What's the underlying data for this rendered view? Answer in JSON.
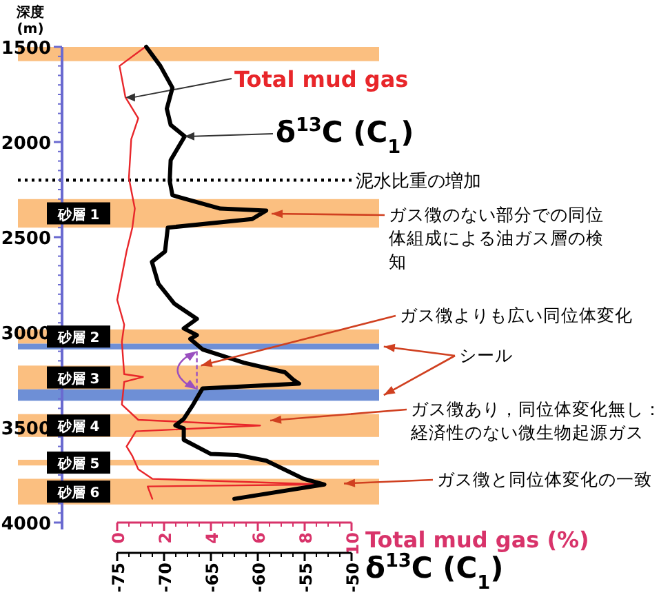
{
  "chart_data": {
    "type": "line",
    "ylabel": "深度 (m)",
    "xlabel": "Total mud gas (%)",
    "x2label": "δ$^{13}$C (C$_{1}$)",
    "ylim": [
      4000,
      1500
    ],
    "yticks": [
      1500,
      2000,
      2500,
      3000,
      3500,
      4000
    ],
    "xlim": [
      0,
      10
    ],
    "xticks": [
      0,
      2,
      4,
      6,
      8,
      10
    ],
    "x2lim": [
      -75,
      -50
    ],
    "x2ticks": [
      -75,
      -70,
      -65,
      -60,
      -55,
      -50
    ],
    "grid": false,
    "legend": false,
    "marker": "none",
    "line_style": "solid",
    "series": [
      {
        "name": "Total mud gas",
        "color": "#e8262a",
        "x": [
          1.2,
          0.1,
          0.35,
          0.9,
          0.6,
          0.5,
          0.75,
          0.65,
          0.4,
          0.0,
          0.3,
          0.2,
          0.3,
          1.1,
          0.3,
          0.2,
          0.9,
          6.1,
          0.8,
          0.4,
          0.65,
          0.9,
          1.5,
          8.8,
          1.3,
          1.5
        ],
        "values": [
          1500,
          1600,
          1765,
          1875,
          1985,
          2190,
          2350,
          2450,
          2575,
          2830,
          2960,
          3050,
          3220,
          3235,
          3260,
          3380,
          3460,
          3490,
          3520,
          3600,
          3650,
          3720,
          3770,
          3800,
          3810,
          3875
        ]
      },
      {
        "name": "δ$^{13}$C (C$_{1}$)",
        "color": "#000000",
        "axis": "x2",
        "x": [
          -71.9,
          -70.4,
          -69.1,
          -69.7,
          -69.3,
          -67.8,
          -69.3,
          -69.4,
          -69.1,
          -64,
          -59.1,
          -60.6,
          -69.6,
          -69.9,
          -71.3,
          -70.6,
          -68.9,
          -66.5,
          -67.9,
          -66.5,
          -67.2,
          -65.9,
          -61.5,
          -57.1,
          -56.2,
          -55.6,
          -65.9,
          -66.9,
          -67.9,
          -68.8,
          -67.9,
          -67.9,
          -65,
          -62.2,
          -59.1,
          -55.1,
          -52.9,
          -62.5
        ],
        "values": [
          1500,
          1600,
          1715,
          1825,
          1910,
          1970,
          2095,
          2205,
          2280,
          2350,
          2360,
          2405,
          2450,
          2575,
          2630,
          2745,
          2850,
          2930,
          2980,
          3015,
          3035,
          3090,
          3160,
          3210,
          3250,
          3270,
          3295,
          3380,
          3455,
          3490,
          3505,
          3565,
          3640,
          3645,
          3675,
          3770,
          3800,
          3875
        ]
      }
    ],
    "bands": [
      {
        "axis": "y",
        "from": 1500,
        "to": 1575,
        "label": null,
        "color": "#fbbf80"
      },
      {
        "axis": "y",
        "from": 2300,
        "to": 2450,
        "label": "砂層 1",
        "color": "#fbbf80"
      },
      {
        "axis": "y",
        "from": 2985,
        "to": 3060,
        "label": "砂層 2",
        "color": "#fbbf80"
      },
      {
        "axis": "y",
        "from": 3060,
        "to": 3090,
        "label": null,
        "color": "#6e8fd6"
      },
      {
        "axis": "y",
        "from": 3175,
        "to": 3300,
        "label": "砂層 3",
        "color": "#fbbf80"
      },
      {
        "axis": "y",
        "from": 3300,
        "to": 3360,
        "label": null,
        "color": "#6e8fd6"
      },
      {
        "axis": "y",
        "from": 3430,
        "to": 3550,
        "label": "砂層 4",
        "color": "#fbbf80"
      },
      {
        "axis": "y",
        "from": 3670,
        "to": 3700,
        "label": "砂層 5",
        "color": "#fbbf80"
      },
      {
        "axis": "y",
        "from": 3770,
        "to": 3905,
        "label": "砂層 6",
        "color": "#fbbf80"
      }
    ],
    "ref_lines": [
      {
        "axis": "y",
        "value": 2200,
        "label": "泥水比重の増加",
        "line_style": "dotted",
        "color": "#000000"
      }
    ],
    "annotations": [
      "ガス徴のない部分での同位体組成による油ガス層の検知",
      {
        "text": "ガス徴よりも広い同位体変化",
        "x": 3.4,
        "y": 3175
      },
      {
        "text": "シール",
        "x": 11.2,
        "y": 3075
      },
      "ガス徴あり，同位体変化無し：経済性のない微生物起源ガス",
      {
        "text": "ガス徴と同位体変化の一致",
        "x": 9.5,
        "y": 3795
      }
    ]
  }
}
